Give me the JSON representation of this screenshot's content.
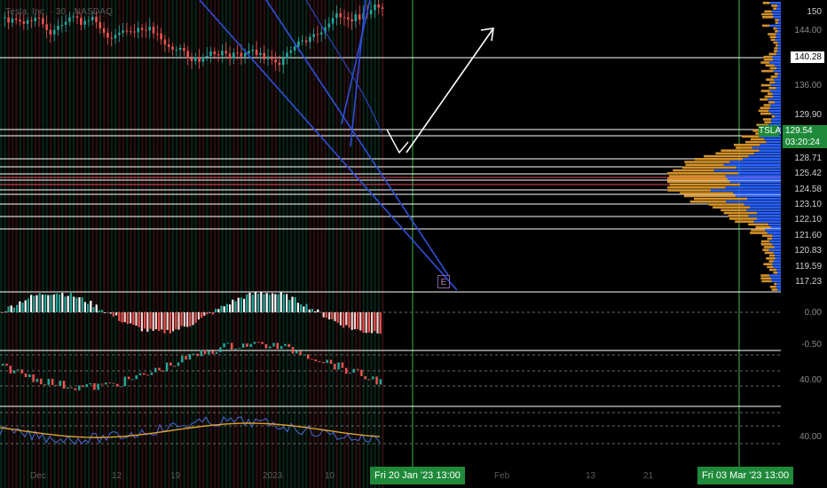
{
  "header": {
    "symbol_line": "Tesla, Inc. · 30 · NASDAQ"
  },
  "ticker": {
    "symbol": "TSLA",
    "price": "129.54",
    "countdown": "03:20:24"
  },
  "price_axis": {
    "plain_labels": [
      "150",
      "144.00",
      "136.00",
      "0.00",
      "-0.50",
      "40.00",
      "40.00"
    ],
    "boxed_labels": [
      "140.28",
      "129.90",
      "128.71",
      "125.42",
      "124.58",
      "123.10",
      "122.10",
      "121.60",
      "120.83",
      "119.59",
      "117.23"
    ]
  },
  "time_axis": {
    "labels": [
      "Dec",
      "12",
      "19",
      "2023",
      "10",
      "Feb",
      "13",
      "21"
    ],
    "badges": [
      "Fri 20 Jan '23   13:00",
      "Fri 03 Mar '23   13:00"
    ]
  },
  "annotations": {
    "earnings_marker": "E"
  },
  "colors": {
    "background": "#000000",
    "up": "#26a69a",
    "down": "#ef5350",
    "trendline": "#2f4fd8",
    "vertical_marker": "#2e9a3c",
    "volume_profile_up": "#2962ff",
    "volume_profile_down": "#d4922a",
    "key_level": "#e05060"
  },
  "icons": {
    "projection_arrow": "white-arrow-icon",
    "earnings": "earnings-marker-icon"
  }
}
